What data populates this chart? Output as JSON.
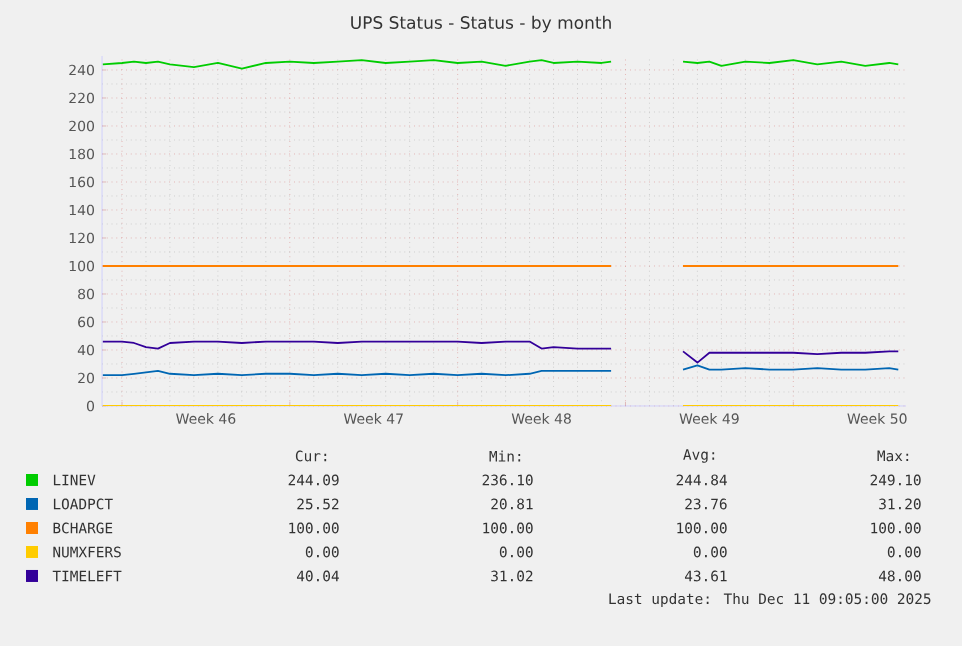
{
  "chart_data": {
    "type": "line",
    "title": "UPS Status - Status - by month",
    "x": [
      "2025-11-08T04:48",
      "2025-11-09T00:00",
      "2025-11-09T12:00",
      "2025-11-10T00:00",
      "2025-11-10T12:00",
      "2025-11-11T00:00",
      "2025-11-12T00:00",
      "2025-11-13T00:00",
      "2025-11-14T00:00",
      "2025-11-15T00:00",
      "2025-11-16T00:00",
      "2025-11-17T00:00",
      "2025-11-18T00:00",
      "2025-11-19T00:00",
      "2025-11-20T00:00",
      "2025-11-21T00:00",
      "2025-11-22T00:00",
      "2025-11-23T00:00",
      "2025-11-24T00:00",
      "2025-11-25T00:00",
      "2025-11-26T00:00",
      "2025-11-26T12:00",
      "2025-11-27T00:00",
      "2025-11-28T00:00",
      "2025-11-29T00:00",
      "2025-11-29T09:36",
      "2025-11-30T21:36",
      "2025-12-02T09:36",
      "2025-12-03T00:00",
      "2025-12-03T12:00",
      "2025-12-04T00:00",
      "2025-12-05T00:00",
      "2025-12-06T00:00",
      "2025-12-07T00:00",
      "2025-12-08T00:00",
      "2025-12-09T00:00",
      "2025-12-10T00:00",
      "2025-12-11T00:00",
      "2025-12-11T09:05"
    ],
    "series": [
      {
        "name": "LINEV",
        "color": "#00cc00",
        "values": [
          244,
          245,
          246,
          245,
          246,
          244,
          242,
          245,
          241,
          245,
          246,
          245,
          246,
          247,
          245,
          246,
          247,
          245,
          246,
          243,
          246,
          247,
          245,
          246,
          245,
          246,
          null,
          246,
          245,
          246,
          243,
          246,
          245,
          247,
          244,
          246,
          243,
          245,
          244
        ]
      },
      {
        "name": "LOADPCT",
        "color": "#0066b3",
        "values": [
          22,
          22,
          23,
          24,
          25,
          23,
          22,
          23,
          22,
          23,
          23,
          22,
          23,
          22,
          23,
          22,
          23,
          22,
          23,
          22,
          23,
          25,
          25,
          25,
          25,
          25,
          null,
          26,
          29,
          26,
          26,
          27,
          26,
          26,
          27,
          26,
          26,
          27,
          26
        ]
      },
      {
        "name": "BCHARGE",
        "color": "#ff8000",
        "values": [
          100,
          100,
          100,
          100,
          100,
          100,
          100,
          100,
          100,
          100,
          100,
          100,
          100,
          100,
          100,
          100,
          100,
          100,
          100,
          100,
          100,
          100,
          100,
          100,
          100,
          100,
          null,
          100,
          100,
          100,
          100,
          100,
          100,
          100,
          100,
          100,
          100,
          100,
          100
        ]
      },
      {
        "name": "NUMXFERS",
        "color": "#ffcc00",
        "values": [
          0,
          0,
          0,
          0,
          0,
          0,
          0,
          0,
          0,
          0,
          0,
          0,
          0,
          0,
          0,
          0,
          0,
          0,
          0,
          0,
          0,
          0,
          0,
          0,
          0,
          0,
          null,
          0,
          0,
          0,
          0,
          0,
          0,
          0,
          0,
          0,
          0,
          0,
          0
        ]
      },
      {
        "name": "TIMELEFT",
        "color": "#330099",
        "values": [
          46,
          46,
          45,
          42,
          41,
          45,
          46,
          46,
          45,
          46,
          46,
          46,
          45,
          46,
          46,
          46,
          46,
          46,
          45,
          46,
          46,
          41,
          42,
          41,
          41,
          41,
          null,
          39,
          31,
          38,
          38,
          38,
          38,
          38,
          37,
          38,
          38,
          39,
          39
        ]
      }
    ],
    "xlim": [
      "2025-11-08T04:00",
      "2025-12-11T16:48"
    ],
    "ylim": [
      0,
      250
    ],
    "xticks": [
      {
        "value": "2025-11-09",
        "label": null
      },
      {
        "value": "2025-11-12T12:00",
        "label": "Week 46"
      },
      {
        "value": "2025-11-16",
        "label": null
      },
      {
        "value": "2025-11-19T12:00",
        "label": "Week 47"
      },
      {
        "value": "2025-11-23",
        "label": null
      },
      {
        "value": "2025-11-26T12:00",
        "label": "Week 48"
      },
      {
        "value": "2025-11-30",
        "label": null
      },
      {
        "value": "2025-12-03T12:00",
        "label": "Week 49"
      },
      {
        "value": "2025-12-07",
        "label": null
      },
      {
        "value": "2025-12-10T12:00",
        "label": "Week 50"
      }
    ],
    "yticks": [
      0,
      20,
      40,
      60,
      80,
      100,
      120,
      140,
      160,
      180,
      200,
      220,
      240
    ],
    "grid": true,
    "legend": "bottom",
    "marker": "none",
    "line_style": "solid",
    "annotations": [
      "Cur:",
      "Min:",
      "Avg:",
      "Max:",
      "244.09",
      "236.10",
      "244.84",
      "249.10",
      "25.52",
      "20.81",
      "23.76",
      "31.20",
      "100.00",
      "100.00",
      "100.00",
      "100.00",
      "0.00",
      "0.00",
      "0.00",
      "0.00",
      "40.04",
      "31.02",
      "43.61",
      "48.00",
      "Last update: Thu Dec 11 09:05:00 2025"
    ]
  }
}
